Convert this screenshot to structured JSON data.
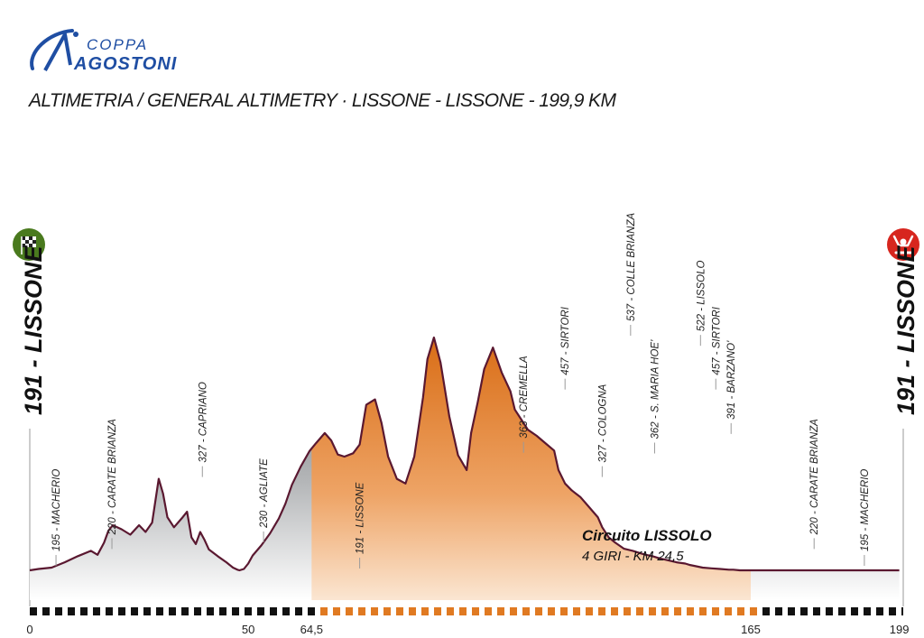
{
  "logo": {
    "line1": "COPPA",
    "line2": "AGOSTONI"
  },
  "header": {
    "title": "ALTIMETRIA / GENERAL ALTIMETRY  ·  LISSONE - LISSONE - 199,9 KM"
  },
  "circuit": {
    "title": "Circuito LISSOLO",
    "subtitle": "4 GIRI - KM 24,5"
  },
  "start": {
    "label": "191 - LISSONE",
    "icon": "checkered-flag-icon",
    "color": "#4a7a1e"
  },
  "finish": {
    "label": "191 - LISSONE",
    "icon": "finish-arms-icon",
    "color": "#d7261e"
  },
  "colors": {
    "profile_fill": "#8a8c8f",
    "circuit_fill": "#e07a22",
    "outline": "#5a1830",
    "brand": "#1f4ea3"
  },
  "chart_data": {
    "type": "area",
    "title": "ALTIMETRIA / GENERAL ALTIMETRY  ·  LISSONE - LISSONE - 199,9 KM",
    "xlabel": "",
    "ylabel": "",
    "xlim": [
      0,
      199.9
    ],
    "x_ticks": [
      {
        "km": 0,
        "label": "0"
      },
      {
        "km": 50,
        "label": "50"
      },
      {
        "km": 64.5,
        "label": "64,5"
      },
      {
        "km": 165,
        "label": "165"
      },
      {
        "km": 199,
        "label": "199"
      }
    ],
    "circuit_range_km": [
      64.5,
      165
    ],
    "series": [
      {
        "km": [
          0,
          2,
          5,
          8,
          11,
          14,
          15.5,
          17,
          18,
          19,
          21,
          23,
          25,
          26.5,
          28,
          29.5,
          30.5,
          31.5,
          33,
          35,
          36,
          37,
          38,
          39,
          40,
          41,
          43,
          45,
          46.5,
          47.5,
          48,
          49,
          50,
          51,
          53,
          55,
          57,
          58.5,
          60,
          62,
          64,
          65.5,
          67.5,
          69,
          70.5,
          72,
          74,
          75.5,
          77,
          79,
          80.5,
          82,
          84,
          86,
          88,
          90,
          91,
          92.5,
          94,
          96,
          98,
          100,
          101,
          102.5,
          104,
          106,
          108,
          110,
          111,
          112.5,
          114,
          116,
          118,
          120,
          121,
          122.5,
          124,
          126,
          128,
          130,
          131,
          132.5,
          134,
          136,
          138,
          140,
          141,
          142.5,
          144,
          146,
          148,
          150,
          151,
          152.5,
          154,
          156,
          158,
          160,
          161,
          162.5,
          164,
          166,
          168,
          170,
          172,
          174,
          176,
          178,
          180,
          182,
          184,
          186,
          188,
          190,
          192,
          194,
          196,
          198,
          199
        ],
        "elev": [
          191,
          193,
          195,
          203,
          212,
          220,
          214,
          232,
          250,
          258,
          252,
          244,
          258,
          248,
          262,
          327,
          305,
          270,
          255,
          270,
          278,
          240,
          230,
          248,
          236,
          222,
          212,
          203,
          195,
          192,
          191,
          193,
          201,
          213,
          228,
          246,
          268,
          290,
          318,
          345,
          368,
          380,
          395,
          384,
          363,
          360,
          365,
          378,
          437,
          445,
          410,
          360,
          327,
          320,
          360,
          448,
          505,
          537,
          500,
          420,
          362,
          340,
          395,
          440,
          490,
          522,
          485,
          457,
          430,
          415,
          400,
          391,
          380,
          369,
          340,
          320,
          310,
          300,
          285,
          270,
          255,
          240,
          232,
          223,
          220,
          216,
          214,
          212,
          209,
          206,
          203,
          201,
          199,
          197,
          195,
          194,
          193,
          192,
          192,
          191,
          191,
          191,
          191,
          191,
          191,
          191,
          191,
          191,
          191,
          191,
          191,
          191,
          191,
          191,
          191,
          191,
          191,
          191,
          191,
          191
        ]
      }
    ],
    "annotations": [
      {
        "km": 6,
        "elev": 195,
        "label": "195 - MACHERIO"
      },
      {
        "km": 18.8,
        "elev": 220,
        "label": "220 - CARATE BRIANZA"
      },
      {
        "km": 39.5,
        "elev": 327,
        "label": "327 - CAPRIANO"
      },
      {
        "km": 53.5,
        "elev": 230,
        "label": "230 - AGLIATE"
      },
      {
        "km": 75.5,
        "elev": 191,
        "label": "191 - LISSONE"
      },
      {
        "km": 113,
        "elev": 363,
        "label": "363 - CREMELLA"
      },
      {
        "km": 122.5,
        "elev": 457,
        "label": "457 - SIRTORI"
      },
      {
        "km": 131,
        "elev": 327,
        "label": "327 - COLOGNA"
      },
      {
        "km": 137.5,
        "elev": 537,
        "label": "537 - COLLE BRIANZA"
      },
      {
        "km": 143,
        "elev": 362,
        "label": "362 - S. MARIA HOE'"
      },
      {
        "km": 153.5,
        "elev": 522,
        "label": "522 - LISSOLO"
      },
      {
        "km": 157,
        "elev": 457,
        "label": "457 - SIRTORI"
      },
      {
        "km": 160.5,
        "elev": 391,
        "label": "391 - BARZANO'"
      },
      {
        "km": 179.5,
        "elev": 220,
        "label": "220 - CARATE BRIANZA"
      },
      {
        "km": 191,
        "elev": 195,
        "label": "195 - MACHERIO"
      }
    ]
  }
}
